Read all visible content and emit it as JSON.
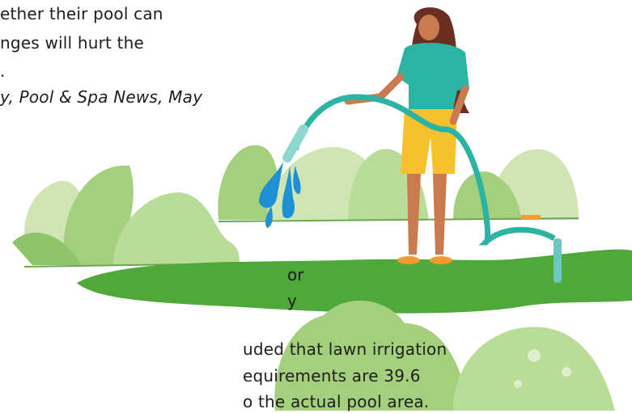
{
  "article": {
    "upper_lines": [
      "ether their pool can",
      "nges will hurt the",
      "."
    ],
    "citation": "y, Pool & Spa News, May",
    "lower_lines": [
      "or",
      "y",
      "uded that lawn irrigation",
      "equirements are 39.6",
      "o the actual pool area."
    ]
  }
}
